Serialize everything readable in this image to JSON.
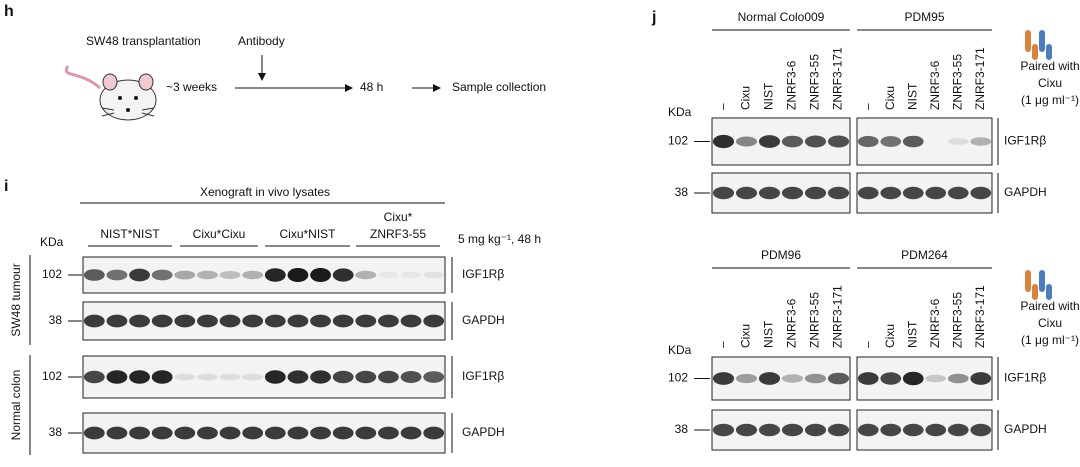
{
  "panel_h": {
    "label": "h",
    "transplant": "SW48 transplantation",
    "antibody": "Antibody",
    "duration": "~3 weeks",
    "time": "48 h",
    "end": "Sample collection"
  },
  "panel_i": {
    "label": "i",
    "title": "Xenograft in vivo lysates",
    "groups": [
      {
        "lines": [
          "NIST*NIST"
        ]
      },
      {
        "lines": [
          "Cixu*Cixu"
        ]
      },
      {
        "lines": [
          "Cixu*NIST"
        ]
      },
      {
        "lines": [
          "Cixu*",
          "ZNRF3-55"
        ]
      }
    ],
    "dose": "5 mg kg⁻¹, 48 h",
    "kda": "KDa",
    "tissues": [
      "SW48 tumour",
      "Normal colon"
    ],
    "blots": [
      {
        "marker": "102",
        "protein": "IGF1Rβ"
      },
      {
        "marker": "38",
        "protein": "GAPDH"
      },
      {
        "marker": "102",
        "protein": "IGF1Rβ"
      },
      {
        "marker": "38",
        "protein": "GAPDH"
      }
    ]
  },
  "panel_j": {
    "label": "j",
    "kda": "KDa",
    "lanes": [
      "–",
      "Cixu",
      "NIST",
      "ZNRF3-6",
      "ZNRF3-55",
      "ZNRF3-171"
    ],
    "legend": [
      "Paired with",
      "Cixu",
      "(1 μg ml⁻¹)"
    ],
    "blocks": [
      {
        "groups": [
          "Normal Colo009",
          "PDM95"
        ],
        "blots": [
          {
            "marker": "102",
            "protein": "IGF1Rβ"
          },
          {
            "marker": "38",
            "protein": "GAPDH"
          }
        ]
      },
      {
        "groups": [
          "PDM96",
          "PDM264"
        ],
        "blots": [
          {
            "marker": "102",
            "protein": "IGF1Rβ"
          },
          {
            "marker": "38",
            "protein": "GAPDH"
          }
        ]
      }
    ]
  }
}
